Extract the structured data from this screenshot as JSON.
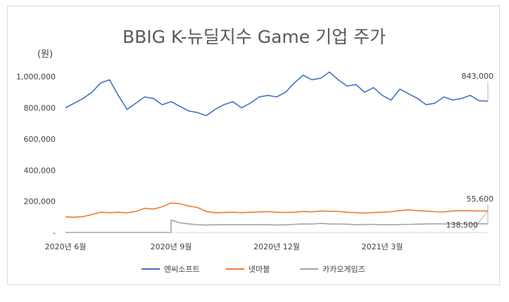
{
  "chart_data": {
    "type": "line",
    "title": "BBIG K-뉴딜지수 Game 기업 주가",
    "ylabel": "(원)",
    "xlabel": "",
    "ylim": [
      0,
      1100000
    ],
    "yticks": [
      {
        "value": 0,
        "label": "-"
      },
      {
        "value": 200000,
        "label": "200,000"
      },
      {
        "value": 400000,
        "label": "400,000"
      },
      {
        "value": 600000,
        "label": "600,000"
      },
      {
        "value": 800000,
        "label": "800,000"
      },
      {
        "value": 1000000,
        "label": "1,000,000"
      }
    ],
    "x_range": [
      "2020-06",
      "2021-06"
    ],
    "xticks": [
      {
        "x": 0,
        "label": "2020년 6월"
      },
      {
        "x": 3,
        "label": "2020년 9월"
      },
      {
        "x": 6,
        "label": "2020년 12월"
      },
      {
        "x": 9,
        "label": "2021년 3월"
      }
    ],
    "grid": false,
    "legend_position": "bottom",
    "x": [
      0.0,
      0.25,
      0.5,
      0.75,
      1.0,
      1.25,
      1.5,
      1.75,
      2.0,
      2.25,
      2.5,
      2.75,
      3.0,
      3.25,
      3.5,
      3.75,
      4.0,
      4.25,
      4.5,
      4.75,
      5.0,
      5.25,
      5.5,
      5.75,
      6.0,
      6.25,
      6.5,
      6.75,
      7.0,
      7.25,
      7.5,
      7.75,
      8.0,
      8.25,
      8.5,
      8.75,
      9.0,
      9.25,
      9.5,
      9.75,
      10.0,
      10.25,
      10.5,
      10.75,
      11.0,
      11.25,
      11.5,
      11.75,
      12.0
    ],
    "series": [
      {
        "name": "엔씨소프트",
        "color": "#4472c4",
        "values": [
          800000,
          830000,
          860000,
          900000,
          960000,
          980000,
          880000,
          790000,
          830000,
          870000,
          860000,
          820000,
          840000,
          810000,
          780000,
          770000,
          750000,
          790000,
          820000,
          840000,
          800000,
          830000,
          870000,
          880000,
          870000,
          900000,
          960000,
          1010000,
          980000,
          990000,
          1030000,
          980000,
          940000,
          950000,
          900000,
          930000,
          880000,
          850000,
          920000,
          890000,
          860000,
          820000,
          830000,
          870000,
          850000,
          860000,
          880000,
          845000,
          843000
        ],
        "end_label": "843,000"
      },
      {
        "name": "넷마블",
        "color": "#ed7d31",
        "values": [
          100000,
          98000,
          102000,
          115000,
          130000,
          127000,
          130000,
          126000,
          135000,
          155000,
          150000,
          165000,
          190000,
          185000,
          170000,
          160000,
          135000,
          127000,
          128000,
          130000,
          127000,
          130000,
          132000,
          134000,
          130000,
          128000,
          130000,
          135000,
          132000,
          138000,
          136000,
          135000,
          130000,
          127000,
          125000,
          128000,
          130000,
          133000,
          140000,
          145000,
          140000,
          137000,
          133000,
          132000,
          138000,
          140000,
          139000,
          138000,
          138500
        ],
        "end_label": "138,500"
      },
      {
        "name": "카카오게임즈",
        "color": "#a5a5a5",
        "values": [
          null,
          null,
          null,
          null,
          null,
          null,
          null,
          null,
          null,
          null,
          null,
          null,
          80000,
          62000,
          55000,
          50000,
          48000,
          49000,
          50000,
          50000,
          50000,
          50000,
          50000,
          50000,
          48000,
          49000,
          52000,
          55000,
          54000,
          58000,
          55000,
          54000,
          53000,
          50000,
          51000,
          52000,
          50000,
          50000,
          51000,
          52000,
          53000,
          55000,
          56000,
          55000,
          56000,
          56000,
          56000,
          55800,
          55600
        ],
        "end_label": "55,600"
      }
    ]
  }
}
